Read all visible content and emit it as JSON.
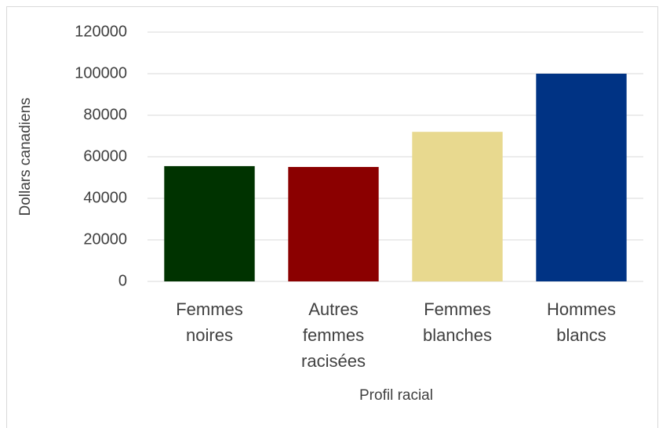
{
  "chart_data": {
    "type": "bar",
    "x_label": "Profil racial",
    "y_label": "Dollars canadiens",
    "categories": [
      "Femmes noires",
      "Autres femmes racisées",
      "Femmes blanches",
      "Hommes blancs"
    ],
    "values": [
      55500,
      55100,
      72000,
      100000
    ],
    "colors": [
      "#003300",
      "#8b0000",
      "#e8d98f",
      "#003384"
    ],
    "ylim": [
      0,
      120000
    ],
    "yticks": [
      0,
      20000,
      40000,
      60000,
      80000,
      100000,
      120000
    ],
    "grid": true
  }
}
